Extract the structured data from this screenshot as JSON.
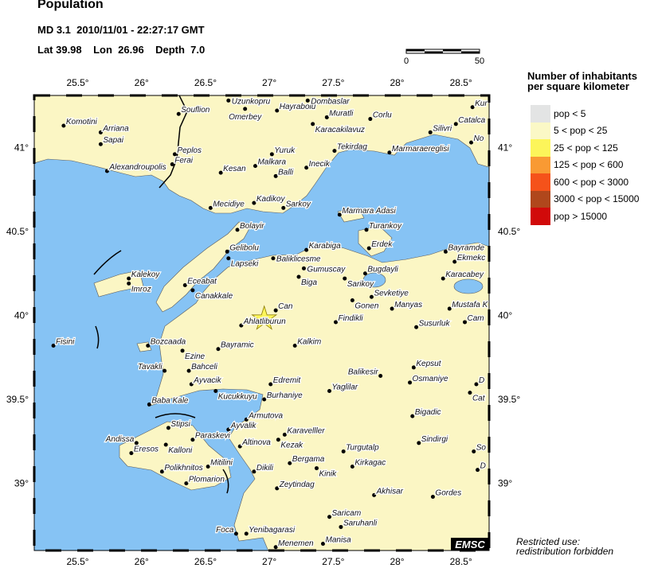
{
  "header": {
    "title": "Population",
    "event_line": "MD 3.1  2010/11/01 - 22:27:17 GMT",
    "location_line": "Lat 39.98    Lon  26.96    Depth  7.0"
  },
  "epicenter": {
    "lat": 39.98,
    "lon": 26.96,
    "magnitude": "MD 3.1",
    "depth": "7.0"
  },
  "scale_bar": {
    "labels": [
      "0",
      "50"
    ],
    "unit_km": 50
  },
  "axes": {
    "lon_ticks": [
      "25.5°",
      "26°",
      "26.5°",
      "27°",
      "27.5°",
      "28°",
      "28.5°"
    ],
    "lon_values": [
      25.5,
      26,
      26.5,
      27,
      27.5,
      28,
      28.5
    ],
    "lat_ticks": [
      "41°",
      "40.5°",
      "40°",
      "39.5°",
      "39°"
    ],
    "lat_values": [
      41,
      40.5,
      40,
      39.5,
      39
    ],
    "lon_range": [
      25.16,
      28.72
    ],
    "lat_range": [
      38.6,
      41.31
    ]
  },
  "legend": {
    "title_line1": "Number of inhabitants",
    "title_line2": "per square kilometer",
    "items": [
      {
        "label": "pop < 5",
        "color": "#e3e4e4"
      },
      {
        "label": "5 < pop < 25",
        "color": "#fbf8c6"
      },
      {
        "label": "25 < pop < 125",
        "color": "#fcf55a"
      },
      {
        "label": "125 < pop < 600",
        "color": "#f99a33"
      },
      {
        "label": "600 < pop < 3000",
        "color": "#f5521a"
      },
      {
        "label": "3000 < pop < 15000",
        "color": "#b0471c"
      },
      {
        "label": "pop > 15000",
        "color": "#d10a0a"
      }
    ]
  },
  "colors": {
    "sea": "#86c3f4",
    "land": "#fbf6c4",
    "border": "#000000",
    "epicenter": "#fcf55a"
  },
  "cities": [
    {
      "name": "Komotini",
      "lon": 25.39,
      "lat": 41.13
    },
    {
      "name": "Arriana",
      "lon": 25.68,
      "lat": 41.09
    },
    {
      "name": "Sapai",
      "lon": 25.68,
      "lat": 41.02
    },
    {
      "name": "Alexandroupolis",
      "lon": 25.73,
      "lat": 40.86
    },
    {
      "name": "Souflion",
      "lon": 26.29,
      "lat": 41.2
    },
    {
      "name": "Peplos",
      "lon": 26.26,
      "lat": 40.96
    },
    {
      "name": "Ferai",
      "lon": 26.24,
      "lat": 40.9
    },
    {
      "name": "Uzunkopru",
      "lon": 26.68,
      "lat": 41.28
    },
    {
      "name": "Omerbey",
      "lon": 26.81,
      "lat": 41.23
    },
    {
      "name": "Hayrabolu",
      "lon": 27.06,
      "lat": 41.22
    },
    {
      "name": "Dombaslar",
      "lon": 27.3,
      "lat": 41.28
    },
    {
      "name": "Muratli",
      "lon": 27.45,
      "lat": 41.18
    },
    {
      "name": "Karacakilavuz",
      "lon": 27.34,
      "lat": 41.14
    },
    {
      "name": "Corlu",
      "lon": 27.79,
      "lat": 41.17
    },
    {
      "name": "Kur",
      "lon": 28.59,
      "lat": 41.24
    },
    {
      "name": "Catalca",
      "lon": 28.46,
      "lat": 41.14
    },
    {
      "name": "Silivri",
      "lon": 28.26,
      "lat": 41.09
    },
    {
      "name": "No",
      "lon": 28.58,
      "lat": 41.03
    },
    {
      "name": "Tekirdag",
      "lon": 27.51,
      "lat": 40.98
    },
    {
      "name": "Marmaraereglisi",
      "lon": 27.94,
      "lat": 40.97
    },
    {
      "name": "Yuruk",
      "lon": 27.02,
      "lat": 40.96
    },
    {
      "name": "Malkara",
      "lon": 26.89,
      "lat": 40.89
    },
    {
      "name": "Balli",
      "lon": 27.05,
      "lat": 40.83
    },
    {
      "name": "Inecik",
      "lon": 27.29,
      "lat": 40.88
    },
    {
      "name": "Kesan",
      "lon": 26.62,
      "lat": 40.85
    },
    {
      "name": "Mecidiye",
      "lon": 26.54,
      "lat": 40.64
    },
    {
      "name": "Kadikoy",
      "lon": 26.88,
      "lat": 40.67
    },
    {
      "name": "Sarkoy",
      "lon": 27.11,
      "lat": 40.64
    },
    {
      "name": "Marmara Adasi",
      "lon": 27.55,
      "lat": 40.6
    },
    {
      "name": "Bolayir",
      "lon": 26.75,
      "lat": 40.51
    },
    {
      "name": "Turankoy",
      "lon": 27.76,
      "lat": 40.51
    },
    {
      "name": "Erdek",
      "lon": 27.78,
      "lat": 40.4
    },
    {
      "name": "Gelibolu",
      "lon": 26.67,
      "lat": 40.38
    },
    {
      "name": "Lapseki",
      "lon": 26.68,
      "lat": 40.34
    },
    {
      "name": "Karabiga",
      "lon": 27.29,
      "lat": 40.39
    },
    {
      "name": "Baliklicesme",
      "lon": 27.03,
      "lat": 40.34
    },
    {
      "name": "Gumuscay",
      "lon": 27.27,
      "lat": 40.28
    },
    {
      "name": "Biga",
      "lon": 27.23,
      "lat": 40.23
    },
    {
      "name": "Kalekoy",
      "lon": 25.9,
      "lat": 40.22
    },
    {
      "name": "Imroz",
      "lon": 25.9,
      "lat": 40.19
    },
    {
      "name": "Eceabat",
      "lon": 26.34,
      "lat": 40.18
    },
    {
      "name": "Canakkale",
      "lon": 26.4,
      "lat": 40.15
    },
    {
      "name": "Bayramde",
      "lon": 28.38,
      "lat": 40.38
    },
    {
      "name": "Ekmekc",
      "lon": 28.45,
      "lat": 40.32
    },
    {
      "name": "Karacabey",
      "lon": 28.36,
      "lat": 40.22
    },
    {
      "name": "Sarikoy",
      "lon": 27.59,
      "lat": 40.22
    },
    {
      "name": "Bugdayli",
      "lon": 27.75,
      "lat": 40.25
    },
    {
      "name": "Gonen",
      "lon": 27.65,
      "lat": 40.09
    },
    {
      "name": "Sevketiye",
      "lon": 27.8,
      "lat": 40.11
    },
    {
      "name": "Manyas",
      "lon": 27.96,
      "lat": 40.04
    },
    {
      "name": "Mustafa K",
      "lon": 28.41,
      "lat": 40.04
    },
    {
      "name": "Can",
      "lon": 27.05,
      "lat": 40.03
    },
    {
      "name": "Ahlatliburun",
      "lon": 26.78,
      "lat": 39.94
    },
    {
      "name": "Findikli",
      "lon": 27.52,
      "lat": 39.96
    },
    {
      "name": "Susurluk",
      "lon": 28.15,
      "lat": 39.93
    },
    {
      "name": "Cam",
      "lon": 28.53,
      "lat": 39.96
    },
    {
      "name": "Fisini",
      "lon": 25.31,
      "lat": 39.82
    },
    {
      "name": "Bozcaada",
      "lon": 26.05,
      "lat": 39.82
    },
    {
      "name": "Ezine",
      "lon": 26.32,
      "lat": 39.79
    },
    {
      "name": "Bayramic",
      "lon": 26.6,
      "lat": 39.8
    },
    {
      "name": "Kalkim",
      "lon": 27.2,
      "lat": 39.82
    },
    {
      "name": "Tavakli",
      "lon": 26.18,
      "lat": 39.67
    },
    {
      "name": "Bahceli",
      "lon": 26.37,
      "lat": 39.67
    },
    {
      "name": "Ayvacik",
      "lon": 26.39,
      "lat": 39.59
    },
    {
      "name": "Kucukkuyu",
      "lon": 26.58,
      "lat": 39.55
    },
    {
      "name": "Baba Kale",
      "lon": 26.06,
      "lat": 39.47
    },
    {
      "name": "Edremit",
      "lon": 27.01,
      "lat": 39.59
    },
    {
      "name": "Burhaniye",
      "lon": 26.96,
      "lat": 39.5
    },
    {
      "name": "Yaglilar",
      "lon": 27.47,
      "lat": 39.55
    },
    {
      "name": "Balikesir",
      "lon": 27.87,
      "lat": 39.64
    },
    {
      "name": "Kepsut",
      "lon": 28.13,
      "lat": 39.69
    },
    {
      "name": "Osmaniye",
      "lon": 28.1,
      "lat": 39.6
    },
    {
      "name": "D",
      "lon": 28.62,
      "lat": 39.59
    },
    {
      "name": "Cat",
      "lon": 28.57,
      "lat": 39.54
    },
    {
      "name": "Armutova",
      "lon": 26.82,
      "lat": 39.38
    },
    {
      "name": "Ayvalik",
      "lon": 26.68,
      "lat": 39.32
    },
    {
      "name": "Paraskevi",
      "lon": 26.4,
      "lat": 39.26
    },
    {
      "name": "Stipsi",
      "lon": 26.21,
      "lat": 39.33
    },
    {
      "name": "Andissa",
      "lon": 25.96,
      "lat": 39.24
    },
    {
      "name": "Kalloni",
      "lon": 26.19,
      "lat": 39.23
    },
    {
      "name": "Eresos",
      "lon": 25.92,
      "lat": 39.18
    },
    {
      "name": "Altinova",
      "lon": 26.77,
      "lat": 39.22
    },
    {
      "name": "Karavelller",
      "lon": 27.12,
      "lat": 39.29
    },
    {
      "name": "Kezak",
      "lon": 27.07,
      "lat": 39.26
    },
    {
      "name": "Bigadic",
      "lon": 28.12,
      "lat": 39.4
    },
    {
      "name": "Sindirgi",
      "lon": 28.17,
      "lat": 39.24
    },
    {
      "name": "So",
      "lon": 28.6,
      "lat": 39.19
    },
    {
      "name": "Turgutalp",
      "lon": 27.58,
      "lat": 39.19
    },
    {
      "name": "Bergama",
      "lon": 27.16,
      "lat": 39.12
    },
    {
      "name": "Kinik",
      "lon": 27.37,
      "lat": 39.09
    },
    {
      "name": "Kirkagac",
      "lon": 27.65,
      "lat": 39.1
    },
    {
      "name": "D",
      "lon": 28.63,
      "lat": 39.08
    },
    {
      "name": "Dikili",
      "lon": 26.88,
      "lat": 39.07
    },
    {
      "name": "Polikhnitos",
      "lon": 26.16,
      "lat": 39.07
    },
    {
      "name": "Mitilini",
      "lon": 26.52,
      "lat": 39.1
    },
    {
      "name": "Plomarion",
      "lon": 26.35,
      "lat": 39.0
    },
    {
      "name": "Zeytindag",
      "lon": 27.06,
      "lat": 38.97
    },
    {
      "name": "Akhisar",
      "lon": 27.82,
      "lat": 38.93
    },
    {
      "name": "Gordes",
      "lon": 28.28,
      "lat": 38.92
    },
    {
      "name": "Saricam",
      "lon": 27.47,
      "lat": 38.8
    },
    {
      "name": "Saruhanli",
      "lon": 27.56,
      "lat": 38.74
    },
    {
      "name": "Foca",
      "lon": 26.74,
      "lat": 38.7
    },
    {
      "name": "Yenibagarasi",
      "lon": 26.82,
      "lat": 38.7
    },
    {
      "name": "Menemen",
      "lon": 27.05,
      "lat": 38.62
    },
    {
      "name": "Manisa",
      "lon": 27.42,
      "lat": 38.64
    }
  ],
  "logo": "EMSC",
  "notice": {
    "line1": "Restricted use:",
    "line2": "redistribution forbidden"
  }
}
